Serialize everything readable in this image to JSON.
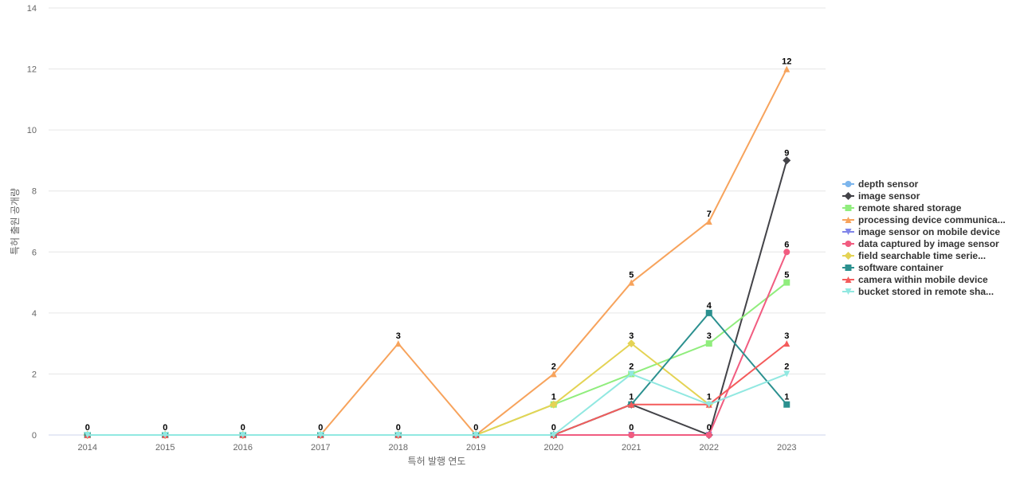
{
  "chart_data": {
    "type": "line",
    "title": "",
    "xlabel": "특허 발행 연도",
    "ylabel": "특허 출원 공개량",
    "x": [
      "2014",
      "2015",
      "2016",
      "2017",
      "2018",
      "2019",
      "2020",
      "2021",
      "2022",
      "2023"
    ],
    "ylim": [
      0,
      14
    ],
    "yticks": [
      0,
      2,
      4,
      6,
      8,
      10,
      12,
      14
    ],
    "grid": true,
    "legend_position": "right",
    "series": [
      {
        "name": "depth sensor",
        "color": "#7cb5ec",
        "marker": "circle",
        "values": [
          0,
          0,
          0,
          0,
          0,
          0,
          0,
          0,
          0,
          null
        ]
      },
      {
        "name": "image sensor",
        "color": "#434348",
        "marker": "diamond",
        "values": [
          0,
          0,
          0,
          0,
          0,
          0,
          0,
          1,
          0,
          9
        ]
      },
      {
        "name": "remote shared storage",
        "color": "#90ed7d",
        "marker": "square",
        "values": [
          0,
          0,
          0,
          0,
          0,
          0,
          1,
          2,
          3,
          5
        ]
      },
      {
        "name": "processing device communica...",
        "color": "#f7a35c",
        "marker": "triangle",
        "values": [
          0,
          0,
          0,
          0,
          3,
          0,
          2,
          5,
          7,
          12
        ]
      },
      {
        "name": "image sensor on mobile device",
        "color": "#8085e9",
        "marker": "triangle-down",
        "values": [
          0,
          0,
          0,
          0,
          0,
          0,
          0,
          0,
          0,
          null
        ]
      },
      {
        "name": "data captured by image sensor",
        "color": "#f15c80",
        "marker": "circle",
        "values": [
          0,
          0,
          0,
          0,
          0,
          0,
          0,
          0,
          0,
          6
        ]
      },
      {
        "name": "field searchable time serie...",
        "color": "#e4d354",
        "marker": "diamond",
        "values": [
          0,
          0,
          0,
          0,
          0,
          0,
          1,
          3,
          1,
          null
        ]
      },
      {
        "name": "software container",
        "color": "#2b908f",
        "marker": "square",
        "values": [
          0,
          0,
          0,
          0,
          0,
          0,
          0,
          1,
          4,
          1
        ]
      },
      {
        "name": "camera within mobile device",
        "color": "#f45b5b",
        "marker": "triangle",
        "values": [
          0,
          0,
          0,
          0,
          0,
          0,
          0,
          1,
          1,
          3
        ]
      },
      {
        "name": "bucket stored in remote sha...",
        "color": "#91e8e1",
        "marker": "triangle-down",
        "values": [
          0,
          0,
          0,
          0,
          0,
          0,
          0,
          2,
          1,
          2
        ]
      }
    ],
    "data_labels": [
      {
        "x": "2014",
        "y": 0,
        "text": "0"
      },
      {
        "x": "2015",
        "y": 0,
        "text": "0"
      },
      {
        "x": "2016",
        "y": 0,
        "text": "0"
      },
      {
        "x": "2017",
        "y": 0,
        "text": "0"
      },
      {
        "x": "2018",
        "y": 3,
        "text": "3"
      },
      {
        "x": "2018",
        "y": 0,
        "text": "0"
      },
      {
        "x": "2019",
        "y": 0,
        "text": "0"
      },
      {
        "x": "2020",
        "y": 2,
        "text": "2"
      },
      {
        "x": "2020",
        "y": 1,
        "text": "1"
      },
      {
        "x": "2020",
        "y": 0,
        "text": "0"
      },
      {
        "x": "2021",
        "y": 5,
        "text": "5"
      },
      {
        "x": "2021",
        "y": 3,
        "text": "3"
      },
      {
        "x": "2021",
        "y": 2,
        "text": "2"
      },
      {
        "x": "2021",
        "y": 1,
        "text": "1"
      },
      {
        "x": "2021",
        "y": 0,
        "text": "0"
      },
      {
        "x": "2022",
        "y": 7,
        "text": "7"
      },
      {
        "x": "2022",
        "y": 4,
        "text": "4"
      },
      {
        "x": "2022",
        "y": 3,
        "text": "3"
      },
      {
        "x": "2022",
        "y": 1,
        "text": "1"
      },
      {
        "x": "2022",
        "y": 0,
        "text": "0"
      },
      {
        "x": "2023",
        "y": 12,
        "text": "12"
      },
      {
        "x": "2023",
        "y": 9,
        "text": "9"
      },
      {
        "x": "2023",
        "y": 6,
        "text": "6"
      },
      {
        "x": "2023",
        "y": 5,
        "text": "5"
      },
      {
        "x": "2023",
        "y": 3,
        "text": "3"
      },
      {
        "x": "2023",
        "y": 2,
        "text": "2"
      },
      {
        "x": "2023",
        "y": 1,
        "text": "1"
      }
    ]
  }
}
